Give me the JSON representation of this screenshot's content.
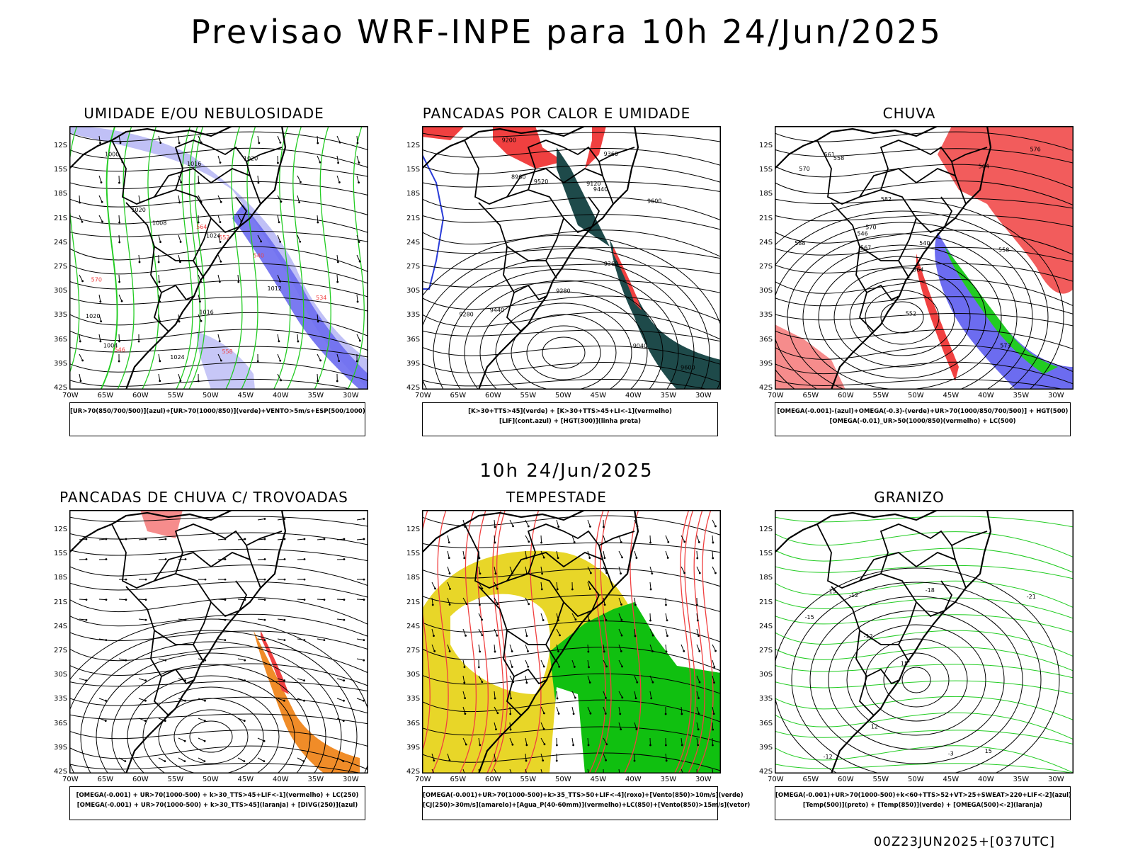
{
  "title": "Previsao WRF-INPE  para 10h 24/Jun/2025",
  "mid_date": "10h 24/Jun/2025",
  "run_info": "00Z23JUN2025+[037UTC]",
  "lat_labels": [
    "12S",
    "15S",
    "18S",
    "21S",
    "24S",
    "27S",
    "30S",
    "33S",
    "36S",
    "39S",
    "42S"
  ],
  "lon_labels": [
    "70W",
    "65W",
    "60W",
    "55W",
    "50W",
    "45W",
    "40W",
    "35W",
    "30W"
  ],
  "panels": [
    {
      "title": "UMIDADE E/OU NEBULOSIDADE",
      "caption": [
        "[UR>70(850/700/500)](azul)+[UR>70(1000/850)](verde)+VENTO>5m/s+ESP(500/1000)"
      ],
      "contour_labels": [
        "1020",
        "1016",
        "1024",
        "1020",
        "1016",
        "1024",
        "1012",
        "1008",
        "1004",
        "1000",
        "1020",
        "570",
        "564",
        "558",
        "552",
        "546",
        "540",
        "534"
      ]
    },
    {
      "title": "PANCADAS POR CALOR E UMIDADE",
      "caption": [
        "[K>30+TTS>45](verde) + [K>30+TTS>45+LI<-1](vermelho)",
        "[LIF](cont.azul) + [HGT(300)](linha preta)"
      ],
      "contour_labels": [
        "9600",
        "9520",
        "9440",
        "9360",
        "9280",
        "9200",
        "9120",
        "9040",
        "8960",
        "9600",
        "9440",
        "9360",
        "9280"
      ]
    },
    {
      "title": "CHUVA",
      "caption": [
        "[OMEGA(-0.001)-(azul)+OMEGA(-0.3)-(verde)+UR>70(1000/850/700/500)] + HGT(500)",
        "[OMEGA(-0.01)_UR>50(1000/850)(vermelho) + LC(500)"
      ],
      "contour_labels": [
        "588",
        "582",
        "576",
        "570",
        "564",
        "558",
        "552",
        "546",
        "540",
        "573",
        "570",
        "567",
        "564",
        "561",
        "558"
      ]
    },
    {
      "title": "PANCADAS DE CHUVA C/ TROVOADAS",
      "caption": [
        "[OMEGA(-0.001) + UR>70(1000-500) + k>30_TTS>45+LIF<-1](vermelho) + LC(250)",
        "[OMEGA(-0.001) + UR>70(1000-500) + k>30_TTS>45](laranja) + [DIVG(250)](azul)"
      ],
      "contour_labels": []
    },
    {
      "title": "TEMPESTADE",
      "caption": [
        "[OMEGA(-0.001)+UR>70(1000-500)+k>35_TTS>50+LIF<-4](roxo)+[Vento(850)>10m/s](verde)",
        "[CJ(250)>30m/s](amarelo)+[Agua_P(40-60mm)](vermelho)+LC(850)+[Vento(850)>15m/s](vetor)"
      ],
      "contour_labels": []
    },
    {
      "title": "GRANIZO",
      "caption": [
        "[OMEGA(-0.001)+UR>70(1000-500)+k<60+TTS>52+VT>25+SWEAT>220+LIF<-2](azul)",
        "[Temp(500)](preto) + [Temp(850)](verde) + [OMEGA(500)<-2](laranja)"
      ],
      "contour_labels": [
        "-3",
        "-12",
        "-12",
        "-12",
        "-18",
        "-21",
        "-15",
        "15",
        "15",
        "15",
        "12"
      ]
    }
  ],
  "colors": {
    "blue_fill": "#6c6cf0",
    "light_blue": "#b9b9f5",
    "green": "#22cc22",
    "red": "#f04040",
    "dark_teal": "#1e4a4a",
    "yellow": "#e8d628",
    "orange": "#f08c28",
    "deep_green": "#10c010"
  }
}
